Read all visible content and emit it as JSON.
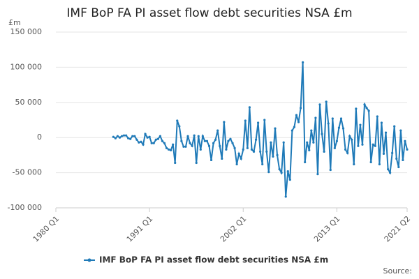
{
  "chart_data": {
    "type": "line",
    "title": "IMF BoP FA PI asset flow debt securities NSA £m",
    "y_label": "£m",
    "source": "Source:",
    "categories": [
      "1980 Q1",
      null,
      null,
      null,
      null,
      null,
      null,
      null,
      null,
      null,
      null,
      null,
      null,
      null,
      null,
      null,
      null,
      null,
      null,
      null,
      null,
      null,
      null,
      null,
      null,
      null,
      null,
      null,
      null,
      null,
      null,
      null,
      null,
      null,
      null,
      null,
      null,
      null,
      null,
      null,
      null,
      null,
      null,
      null,
      "1991 Q1",
      null,
      null,
      null,
      null,
      null,
      null,
      null,
      null,
      null,
      null,
      null,
      null,
      null,
      null,
      null,
      null,
      null,
      null,
      null,
      null,
      null,
      null,
      null,
      null,
      null,
      null,
      null,
      null,
      null,
      null,
      null,
      null,
      null,
      null,
      null,
      null,
      null,
      null,
      null,
      null,
      null,
      null,
      null,
      "2002 Q1",
      null,
      null,
      null,
      null,
      null,
      null,
      null,
      null,
      null,
      null,
      null,
      null,
      null,
      null,
      null,
      null,
      null,
      null,
      null,
      null,
      null,
      null,
      null,
      null,
      null,
      null,
      null,
      null,
      null,
      null,
      null,
      null,
      null,
      null,
      null,
      null,
      null,
      null,
      null,
      null,
      null,
      null,
      null,
      "2013 Q1",
      null,
      null,
      null,
      null,
      null,
      null,
      null,
      null,
      null,
      null,
      null,
      null,
      null,
      null,
      null,
      null,
      null,
      null,
      null,
      null,
      null,
      null,
      null,
      null,
      null,
      null,
      null,
      null,
      null,
      null,
      null,
      null,
      "2021 Q2"
    ],
    "series": [
      {
        "name": "IMF BoP FA PI asset flow debt securities NSA £m",
        "color": "#1f7ab8",
        "values": [
          null,
          null,
          null,
          null,
          null,
          null,
          null,
          null,
          null,
          null,
          null,
          null,
          null,
          null,
          null,
          null,
          null,
          null,
          null,
          null,
          null,
          null,
          null,
          null,
          null,
          null,
          null,
          1000,
          -1000,
          2000,
          0,
          2000,
          3000,
          3000,
          -1000,
          -2000,
          2000,
          2000,
          -3000,
          -7000,
          -6000,
          -10000,
          5000,
          0,
          1000,
          -8000,
          -8000,
          -3000,
          -2000,
          2000,
          -5000,
          -8000,
          -15000,
          -17000,
          -18000,
          -10000,
          -36000,
          24000,
          16000,
          -5000,
          -13000,
          -13000,
          2000,
          -8000,
          -12000,
          3000,
          -36000,
          2000,
          -17000,
          2000,
          -5000,
          -5000,
          -12000,
          -32000,
          -8000,
          -3000,
          10000,
          -12000,
          -30000,
          22000,
          -17000,
          -5000,
          -2000,
          -8000,
          -15000,
          -38000,
          -23000,
          -30000,
          -17000,
          24000,
          -15000,
          43000,
          -17000,
          -20000,
          -3000,
          21000,
          -20000,
          -38000,
          25000,
          -20000,
          -49000,
          -7000,
          -27000,
          13000,
          -25000,
          -45000,
          -50000,
          -7000,
          -84000,
          -48000,
          -60000,
          10000,
          15000,
          32000,
          22000,
          42000,
          107000,
          -35000,
          -7000,
          -18000,
          10000,
          -7000,
          28000,
          -52000,
          47000,
          5000,
          -20000,
          51000,
          20000,
          -46000,
          27000,
          -15000,
          -5000,
          14000,
          27000,
          13000,
          -17000,
          -22000,
          2000,
          -3000,
          -38000,
          41000,
          -12000,
          18000,
          -10000,
          47000,
          42000,
          38000,
          -35000,
          -10000,
          -12000,
          30000,
          -38000,
          21000,
          -23000,
          7000,
          -45000,
          -50000,
          -22000,
          16000,
          -30000,
          -42000,
          10000,
          -32000,
          -5000,
          -17000
        ]
      }
    ],
    "ylim": [
      -100000,
      150000
    ],
    "yticks": [
      {
        "value": -100000,
        "label": "-100 000"
      },
      {
        "value": -50000,
        "label": "-50 000"
      },
      0,
      {
        "value": 50000,
        "label": "50 000"
      },
      {
        "value": 100000,
        "label": "100 000"
      },
      {
        "value": 150000,
        "label": "150 000"
      }
    ],
    "grid": true
  }
}
